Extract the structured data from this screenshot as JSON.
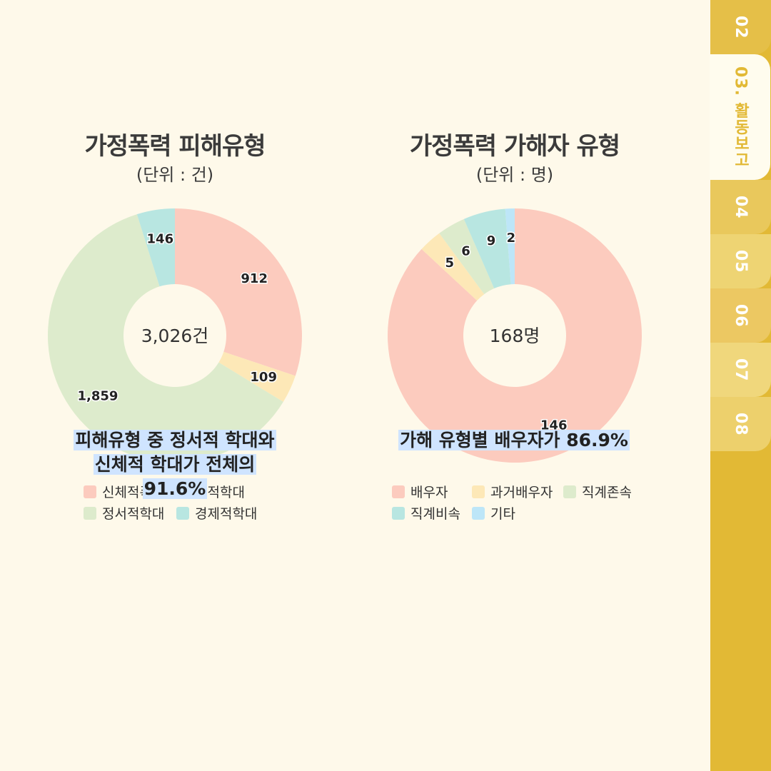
{
  "chart_data": [
    {
      "type": "donut",
      "title": "가정폭력 피해유형",
      "unit_label": "(단위 : 건)",
      "center_label": "3,026건",
      "categories": [
        "신체적폭력",
        "성적학대",
        "정서적학대",
        "경제적학대"
      ],
      "values": [
        912,
        109,
        1859,
        146
      ],
      "value_labels": [
        "912",
        "109",
        "1,859",
        "146"
      ],
      "colors": [
        "#fccbbe",
        "#fde8b7",
        "#ddebcc",
        "#b8e6e1"
      ],
      "legend_placement": "bottom"
    },
    {
      "type": "donut",
      "title": "가정폭력 가해자 유형",
      "unit_label": "(단위 : 명)",
      "center_label": "168명",
      "categories": [
        "배우자",
        "과거배우자",
        "직계존속",
        "직계비속",
        "기타"
      ],
      "values": [
        146,
        5,
        6,
        9,
        2
      ],
      "value_labels": [
        "146",
        "5",
        "6",
        "9",
        "2"
      ],
      "colors": [
        "#fccbbe",
        "#fde8b7",
        "#ddebcc",
        "#b8e6e1",
        "#bde6f8"
      ],
      "legend_placement": "bottom"
    }
  ],
  "captions": {
    "left": [
      "피해유형 중 정서적 학대와",
      "신체적 학대가 전체의",
      "91.6%"
    ],
    "right": [
      "가해 유형별 배우자가 86.9%"
    ]
  },
  "tabs": [
    {
      "label": "02",
      "active": false
    },
    {
      "label": "03. 활동보고",
      "active": true
    },
    {
      "label": "04",
      "active": false
    },
    {
      "label": "05",
      "active": false
    },
    {
      "label": "06",
      "active": false
    },
    {
      "label": "07",
      "active": false
    },
    {
      "label": "08",
      "active": false
    }
  ],
  "colors": {
    "background": "#fef9ea",
    "tab_bar": "#e2b935",
    "caption_highlight": "#cfe4ff"
  }
}
